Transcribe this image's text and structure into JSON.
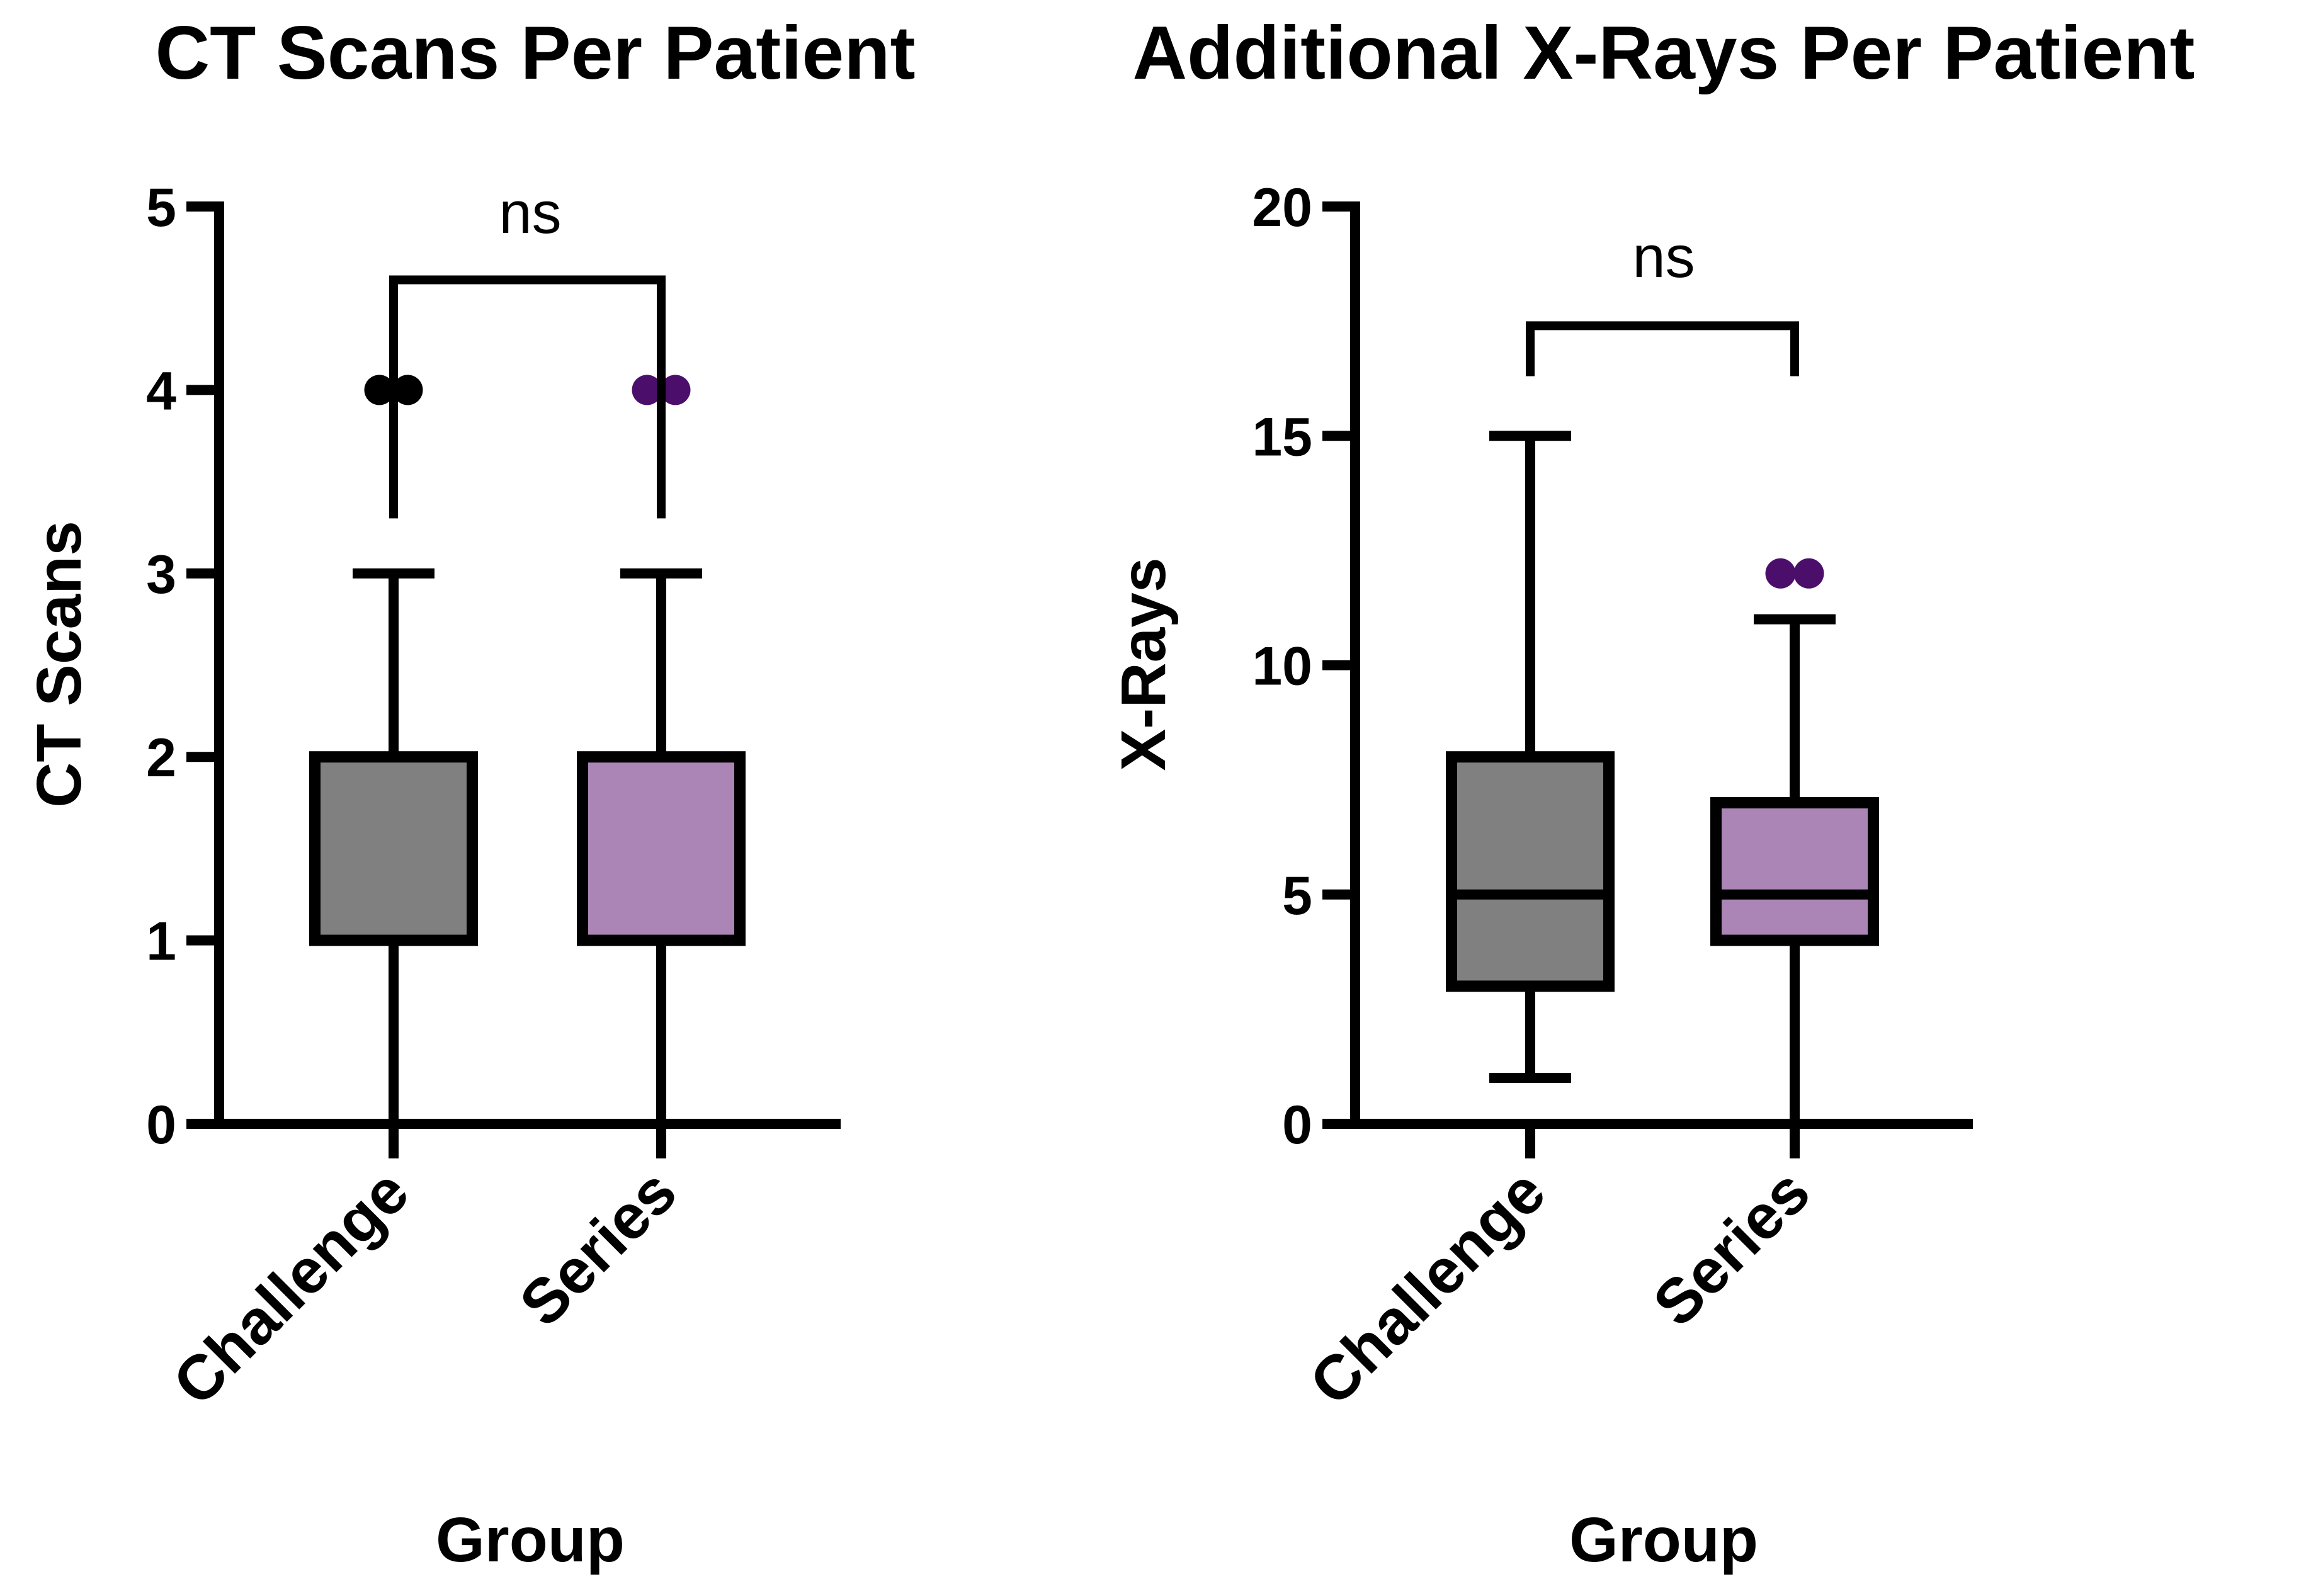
{
  "chart_data": [
    {
      "type": "box",
      "title": "CT Scans Per Patient",
      "ylabel": "CT Scans",
      "xlabel": "Group",
      "ylim": [
        0,
        5
      ],
      "yticks": [
        "0",
        "1",
        "2",
        "3",
        "4",
        "5"
      ],
      "grid": false,
      "legend": "none",
      "categories": [
        "Challenge",
        "Series"
      ],
      "boxes": [
        {
          "category": "Challenge",
          "min": 0,
          "q1": 1,
          "median": 1,
          "q3": 2,
          "max": 3,
          "outliers": [
            4,
            4
          ],
          "color": "#808080",
          "point_color": "#000000"
        },
        {
          "category": "Series",
          "min": 0,
          "q1": 1,
          "median": 1,
          "q3": 2,
          "max": 3,
          "outliers": [
            4,
            4
          ],
          "color": "#aa85b5",
          "point_color": "#4b0f6b"
        }
      ],
      "comparison": {
        "label": "ns",
        "bar_y": 4.6,
        "leg_y": 3.3,
        "label_y": 4.95
      }
    },
    {
      "type": "box",
      "title": "Additional X-Rays Per Patient",
      "ylabel": "X-Rays",
      "xlabel": "Group",
      "ylim": [
        0,
        20
      ],
      "yticks": [
        "0",
        "5",
        "10",
        "15",
        "20"
      ],
      "grid": false,
      "legend": "none",
      "categories": [
        "Challenge",
        "Series"
      ],
      "boxes": [
        {
          "category": "Challenge",
          "min": 1,
          "q1": 3,
          "median": 5,
          "q3": 8,
          "max": 15,
          "outliers": [],
          "color": "#808080",
          "point_color": "#000000"
        },
        {
          "category": "Series",
          "min": 0,
          "q1": 4,
          "median": 5,
          "q3": 7,
          "max": 11,
          "outliers": [
            12,
            12
          ],
          "color": "#aa85b5",
          "point_color": "#4b0f6b"
        }
      ],
      "comparison": {
        "label": "ns",
        "bar_y": 17.4,
        "leg_y": 16.3,
        "label_y": 18.8
      }
    }
  ]
}
